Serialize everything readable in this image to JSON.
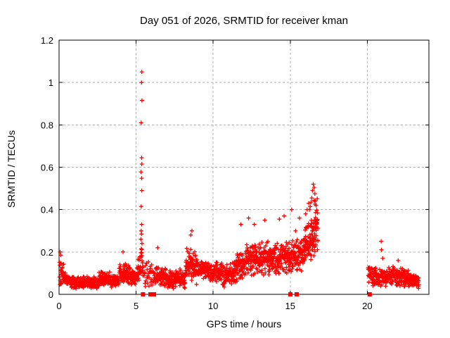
{
  "page": {
    "background": "#ffffff"
  },
  "chart_data": {
    "type": "scatter",
    "title": "Day 051 of 2026, SRMTID for receiver kman",
    "xlabel": "GPS time / hours",
    "ylabel": "SRMTID / TECUs",
    "xlim": [
      0,
      24
    ],
    "ylim": [
      0,
      1.2
    ],
    "xtick_values": [
      0,
      5,
      10,
      15,
      20
    ],
    "xtick_labels": [
      "0",
      "5",
      "10",
      "15",
      "20"
    ],
    "ytick_values": [
      0,
      0.2,
      0.4,
      0.6,
      0.8,
      1.0,
      1.2
    ],
    "ytick_labels": [
      "0",
      "0.2",
      "0.4",
      "0.6",
      "0.8",
      "1",
      "1.2"
    ],
    "grid": {
      "show": true,
      "color": "#b3b3b3",
      "style": "dashed"
    },
    "axis_color": "#000000",
    "marker_color": "#ff0000",
    "legend": "none",
    "series": [
      {
        "name": "srmtid",
        "marker": "plus",
        "seed": 20260151,
        "explicit_points": [
          [
            5.37,
            1.05
          ],
          [
            5.35,
            1.0
          ],
          [
            5.38,
            0.915
          ],
          [
            5.33,
            0.81
          ],
          [
            5.36,
            0.645
          ],
          [
            5.37,
            0.615
          ],
          [
            5.32,
            0.578
          ],
          [
            5.36,
            0.548
          ],
          [
            5.37,
            0.49
          ],
          [
            5.33,
            0.415
          ],
          [
            5.36,
            0.33
          ],
          [
            5.33,
            0.3
          ],
          [
            5.35,
            0.285
          ],
          [
            5.31,
            0.26
          ],
          [
            5.38,
            0.24
          ],
          [
            5.34,
            0.215
          ],
          [
            5.36,
            0.195
          ],
          [
            5.32,
            0.175
          ],
          [
            0.07,
            0.2
          ],
          [
            0.1,
            0.185
          ],
          [
            4.15,
            0.2
          ],
          [
            6.4,
            0.22
          ],
          [
            8.55,
            0.28
          ],
          [
            8.62,
            0.3
          ],
          [
            11.8,
            0.33
          ],
          [
            12.3,
            0.36
          ],
          [
            12.67,
            0.33
          ],
          [
            13.35,
            0.35
          ],
          [
            14.3,
            0.355
          ],
          [
            14.6,
            0.37
          ],
          [
            15.1,
            0.4
          ],
          [
            15.35,
            0.3
          ],
          [
            15.6,
            0.36
          ],
          [
            16.0,
            0.38
          ],
          [
            16.1,
            0.4
          ],
          [
            16.2,
            0.43
          ],
          [
            16.25,
            0.4
          ],
          [
            16.3,
            0.415
          ],
          [
            16.35,
            0.435
          ],
          [
            16.4,
            0.455
          ],
          [
            16.45,
            0.49
          ],
          [
            16.5,
            0.52
          ],
          [
            16.55,
            0.505
          ],
          [
            16.6,
            0.475
          ],
          [
            16.62,
            0.44
          ],
          [
            16.68,
            0.42
          ],
          [
            20.9,
            0.25
          ],
          [
            20.92,
            0.21
          ],
          [
            21.0,
            0.17
          ],
          [
            22.0,
            0.16
          ]
        ],
        "band_segments_format": [
          "t_start",
          "t_end",
          "n_points",
          "center_start",
          "center_end",
          "spread"
        ],
        "band_segments": [
          [
            0.03,
            0.3,
            28,
            0.11,
            0.09,
            0.07
          ],
          [
            0.3,
            1.0,
            70,
            0.075,
            0.06,
            0.035
          ],
          [
            1.0,
            2.6,
            150,
            0.055,
            0.055,
            0.03
          ],
          [
            2.6,
            3.3,
            70,
            0.075,
            0.07,
            0.04
          ],
          [
            3.3,
            3.9,
            60,
            0.06,
            0.07,
            0.03
          ],
          [
            3.9,
            4.6,
            75,
            0.1,
            0.1,
            0.055
          ],
          [
            4.6,
            5.05,
            45,
            0.075,
            0.08,
            0.04
          ],
          [
            5.05,
            5.3,
            25,
            0.1,
            0.13,
            0.07
          ],
          [
            5.3,
            5.45,
            14,
            0.13,
            0.15,
            0.09
          ],
          [
            5.5,
            6.25,
            40,
            0.1,
            0.09,
            0.075
          ],
          [
            6.25,
            7.0,
            70,
            0.085,
            0.08,
            0.05
          ],
          [
            7.0,
            8.2,
            115,
            0.07,
            0.075,
            0.05
          ],
          [
            8.2,
            8.95,
            85,
            0.14,
            0.13,
            0.085
          ],
          [
            8.95,
            9.7,
            70,
            0.115,
            0.11,
            0.05
          ],
          [
            9.7,
            10.6,
            85,
            0.105,
            0.1,
            0.055
          ],
          [
            10.6,
            11.25,
            60,
            0.085,
            0.1,
            0.06
          ],
          [
            11.25,
            12.1,
            85,
            0.12,
            0.15,
            0.075
          ],
          [
            12.1,
            13.1,
            105,
            0.165,
            0.17,
            0.085
          ],
          [
            13.1,
            14.1,
            105,
            0.175,
            0.17,
            0.09
          ],
          [
            14.1,
            15.05,
            100,
            0.165,
            0.175,
            0.09
          ],
          [
            15.05,
            15.85,
            85,
            0.175,
            0.19,
            0.095
          ],
          [
            15.85,
            16.45,
            70,
            0.21,
            0.27,
            0.115
          ],
          [
            16.45,
            16.8,
            55,
            0.3,
            0.33,
            0.15
          ],
          [
            20.05,
            20.65,
            55,
            0.095,
            0.08,
            0.055
          ],
          [
            20.65,
            21.7,
            95,
            0.08,
            0.085,
            0.05
          ],
          [
            21.7,
            22.7,
            95,
            0.085,
            0.08,
            0.05
          ],
          [
            22.7,
            23.35,
            70,
            0.07,
            0.06,
            0.04
          ]
        ]
      },
      {
        "name": "zero-flags",
        "marker": "filled-square",
        "points": [
          [
            5.45,
            0
          ],
          [
            5.93,
            0
          ],
          [
            6.16,
            0
          ],
          [
            15.01,
            0
          ],
          [
            15.42,
            0
          ],
          [
            20.16,
            0
          ]
        ]
      }
    ]
  }
}
